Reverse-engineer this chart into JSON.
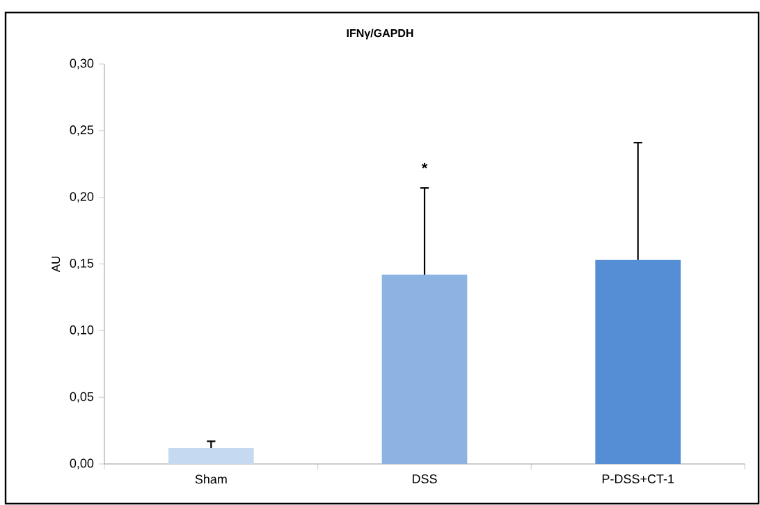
{
  "chart_data": {
    "type": "bar",
    "title": "IFNγ/GAPDH",
    "ylabel": "AU",
    "categories": [
      "Sham",
      "DSS",
      "P-DSS+CT-1"
    ],
    "values": [
      0.012,
      0.142,
      0.153
    ],
    "colors": [
      "#c5d9f1",
      "#8db3e2",
      "#558ed5"
    ],
    "errors": [
      [
        0.012,
        0.017
      ],
      [
        0.142,
        0.207
      ],
      [
        0.153,
        0.241
      ]
    ],
    "ylim": [
      0,
      0.3
    ],
    "yticks": [
      {
        "value": 0,
        "label": "0,00"
      },
      {
        "value": 0.05,
        "label": "0,05"
      },
      {
        "value": 0.1,
        "label": "0,10"
      },
      {
        "value": 0.15,
        "label": "0,15"
      },
      {
        "value": 0.2,
        "label": "0,20"
      },
      {
        "value": 0.25,
        "label": "0,25"
      },
      {
        "value": 0.3,
        "label": "0,30"
      }
    ],
    "annotations": [
      "*"
    ],
    "grid": false
  }
}
